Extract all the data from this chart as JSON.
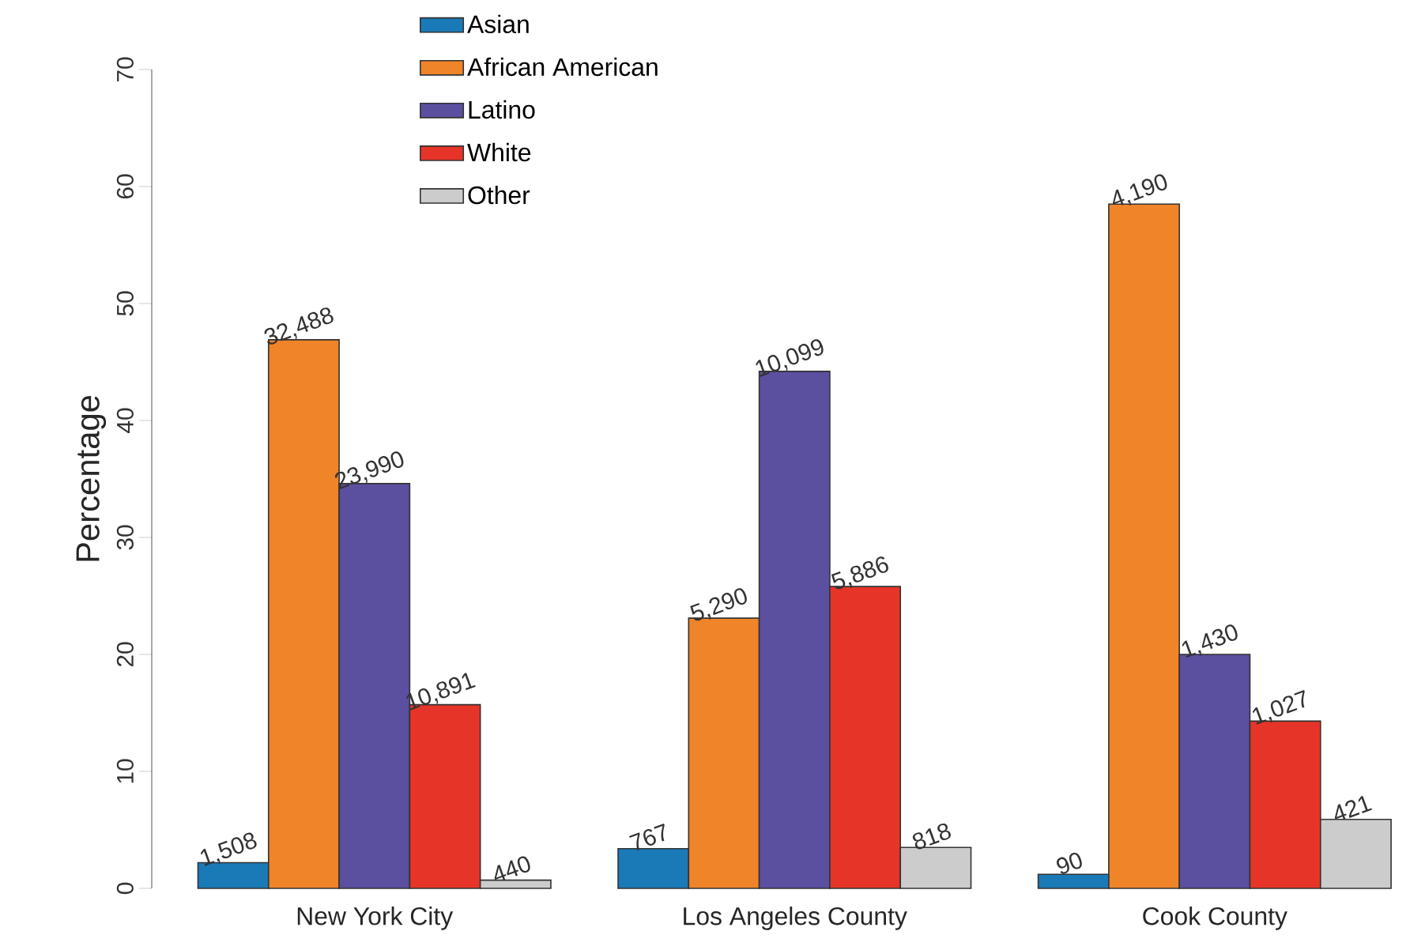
{
  "chart_data": {
    "type": "bar",
    "ylabel": "Percentage",
    "categories": [
      "New York City",
      "Los Angeles County",
      "Cook County"
    ],
    "ylim": [
      0,
      70
    ],
    "yticks": [
      0,
      10,
      20,
      30,
      40,
      50,
      60,
      70
    ],
    "legend": "top",
    "series": [
      {
        "name": "Asian",
        "color": "#1a7ab8",
        "values": [
          2.2,
          3.4,
          1.2
        ]
      },
      {
        "name": "African American",
        "color": "#f08428",
        "values": [
          46.9,
          23.1,
          58.5
        ]
      },
      {
        "name": "Latino",
        "color": "#5b4fa0",
        "values": [
          34.6,
          44.2,
          20.0
        ]
      },
      {
        "name": "White",
        "color": "#e63528",
        "values": [
          15.7,
          25.8,
          14.3
        ]
      },
      {
        "name": "Other",
        "color": "#cccccc",
        "values": [
          0.7,
          3.5,
          5.9
        ]
      }
    ],
    "annotations": [
      "1,508",
      "32,488",
      "23,990",
      "10,891",
      "440",
      "767",
      "5,290",
      "10,099",
      "5,886",
      "818",
      "90",
      "4,190",
      "1,430",
      "1,027",
      "421"
    ]
  }
}
